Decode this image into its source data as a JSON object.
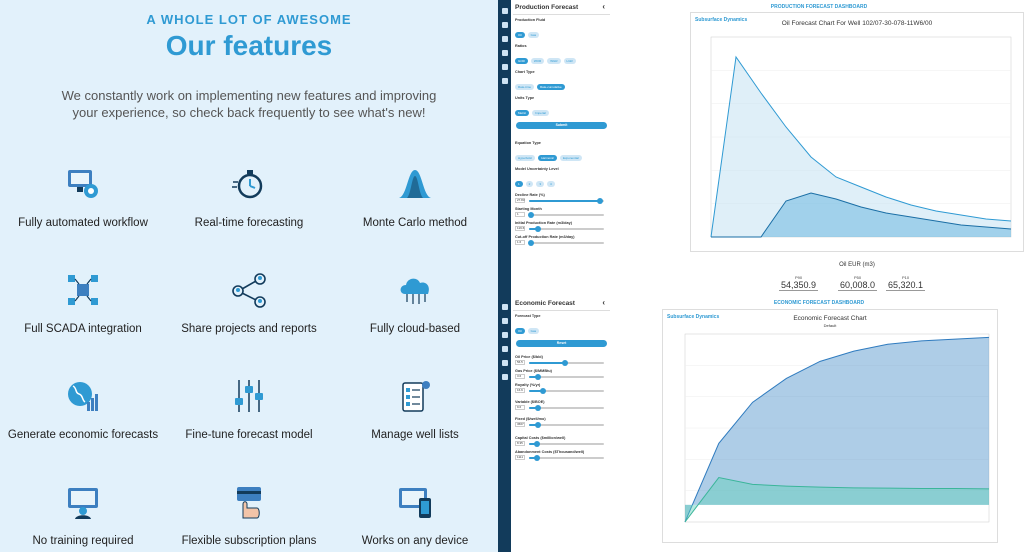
{
  "promo": {
    "kicker": "A WHOLE LOT OF AWESOME",
    "title": "Our features",
    "subtitle": "We constantly work on implementing new features and improving your experience, so check back frequently to see what's new!",
    "features": [
      {
        "label": "Fully automated workflow",
        "icon": "monitor-gear-icon"
      },
      {
        "label": "Real-time forecasting",
        "icon": "stopwatch-icon"
      },
      {
        "label": "Monte Carlo method",
        "icon": "bell-curve-icon"
      },
      {
        "label": "Full SCADA integration",
        "icon": "network-nodes-icon"
      },
      {
        "label": "Share projects and reports",
        "icon": "share-people-icon"
      },
      {
        "label": "Fully cloud-based",
        "icon": "cloud-icon"
      },
      {
        "label": "Generate economic forecasts",
        "icon": "globe-chart-icon"
      },
      {
        "label": "Fine-tune forecast model",
        "icon": "sliders-icon"
      },
      {
        "label": "Manage well lists",
        "icon": "checklist-icon"
      },
      {
        "label": "No training required",
        "icon": "video-lesson-icon"
      },
      {
        "label": "Flexible subscription plans",
        "icon": "hand-card-icon"
      },
      {
        "label": "Works on any device",
        "icon": "devices-icon"
      }
    ]
  },
  "production_panel": {
    "title": "Production Forecast",
    "fluid_label": "Production Fluid",
    "fluid_opts": [
      "Oil",
      "Gas"
    ],
    "ratios_label": "Ratios",
    "ratio_opts": [
      "GOR",
      "WOR",
      "WGR",
      "LGR"
    ],
    "chart_type_label": "Chart Type",
    "chart_type_opts": [
      "Rate-time",
      "Rate-cumulative"
    ],
    "units_label": "Units Type",
    "units_opts": [
      "Metric",
      "Imperial"
    ],
    "submit": "Submit",
    "equation_label": "Equation Type",
    "equation_opts": [
      "Hyperbolic",
      "Harmonic",
      "Exponential"
    ],
    "uncert_label": "Model Uncertainty Level",
    "uncert_opts": [
      "1",
      "2",
      "3",
      "4"
    ],
    "decline_label": "Decline Rate (%)",
    "decline_val": "27.83",
    "month_label": "Starting Month",
    "month_val": "1",
    "initial_label": "Initial Production Rate (m3/day)",
    "initial_val": "119.6",
    "cutoff_label": "Cut-off Production Rate (m3/day)",
    "cutoff_val": "1.6"
  },
  "economic_panel": {
    "title": "Economic Forecast",
    "forecast_label": "Forecast Type",
    "forecast_opts": [
      "Oil",
      "Gas"
    ],
    "reset": "Reset",
    "oil_label": "Oil Price ($/bbl)",
    "oil_val": "56.5",
    "gas_label": "Gas Price ($/MMBtu)",
    "gas_val": "3.6",
    "royalty_label": "Royalty (%/yr)",
    "royalty_val": "16.6",
    "variable_label": "Variable ($/BOE)",
    "variable_val": "9.6",
    "fixed_label": "Fixed ($/well/mo)",
    "fixed_val": "3667",
    "capital_label": "Capital Costs ($million/well)",
    "capital_val": "8.35",
    "abandon_label": "Abandonment Costs ($Thousand/well)",
    "abandon_val": "1111"
  },
  "production_dashboard": {
    "title": "PRODUCTION FORECAST DASHBOARD",
    "chart_title": "Oil Forecast Chart For Well 102/07-30-078-11W6/00",
    "logo": "Subsurface Dynamics",
    "eur_title": "Oil EUR (m3)",
    "eur": [
      {
        "k": "P90",
        "v": "54,350.9"
      },
      {
        "k": "P50",
        "v": "60,008.0"
      },
      {
        "k": "P10",
        "v": "65,320.1"
      }
    ]
  },
  "economic_dashboard": {
    "title": "ECONOMIC FORECAST DASHBOARD",
    "chart_title": "Economic Forecast Chart",
    "chart_sub": "Default",
    "logo": "Subsurface Dynamics"
  },
  "chart_data": [
    {
      "type": "area",
      "title": "Oil Forecast Chart For Well 102/07-30-078-11W6/00",
      "series": [
        {
          "values": [
            0,
            90,
            72,
            55,
            40,
            30,
            25,
            20,
            16,
            13,
            11,
            9,
            8
          ]
        },
        {
          "values": [
            0,
            0,
            0,
            18,
            22,
            19,
            15,
            12,
            10,
            8,
            6,
            5,
            4
          ]
        }
      ]
    },
    {
      "type": "area",
      "title": "Economic Forecast Chart",
      "series": [
        {
          "values": [
            -5,
            18,
            30,
            37,
            42,
            45,
            47,
            48,
            48.5,
            49
          ]
        },
        {
          "values": [
            -5,
            8,
            6,
            5.5,
            5.2,
            5,
            4.9,
            4.8,
            4.8,
            4.7
          ]
        }
      ]
    }
  ]
}
